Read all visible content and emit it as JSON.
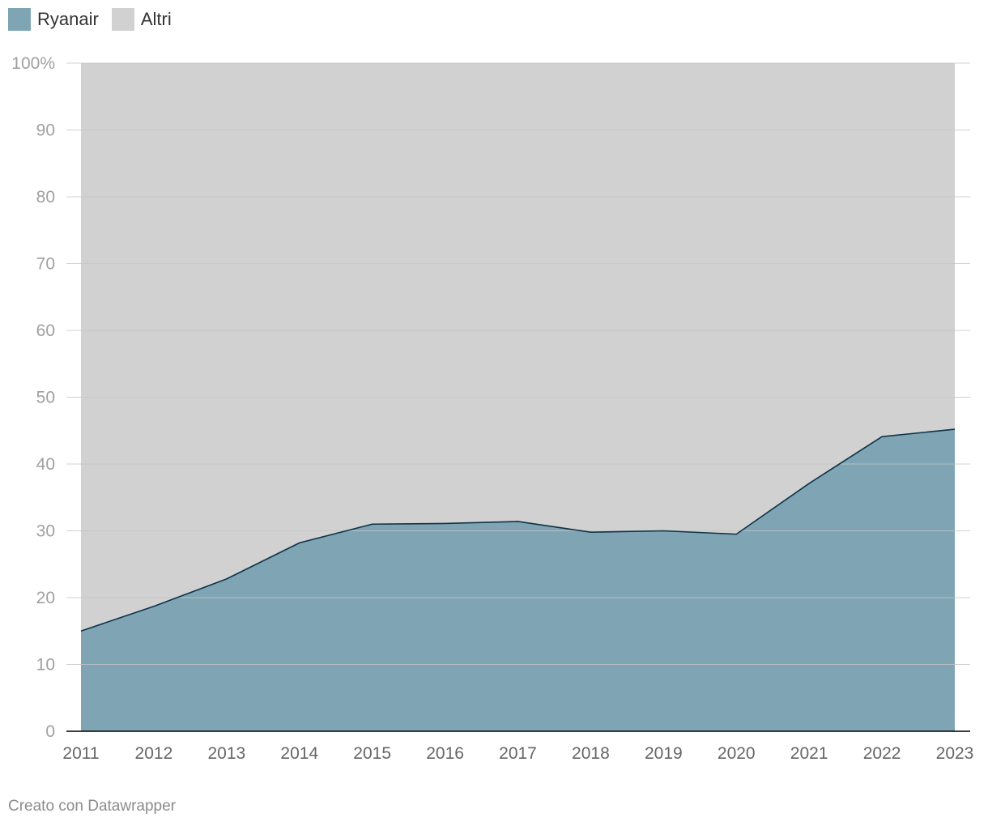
{
  "legend": [
    {
      "name": "Ryanair",
      "color": "#7fa5b4"
    },
    {
      "name": "Altri",
      "color": "#d1d1d1"
    }
  ],
  "footer": "Creato con Datawrapper",
  "chart_data": {
    "type": "area",
    "stacked": true,
    "x": [
      "2011",
      "2012",
      "2013",
      "2014",
      "2015",
      "2016",
      "2017",
      "2018",
      "2019",
      "2020",
      "2021",
      "2022",
      "2023"
    ],
    "series": [
      {
        "name": "Ryanair",
        "color": "#7fa5b4",
        "line_color": "#0d3349",
        "values": [
          15.0,
          18.7,
          22.8,
          28.2,
          31.0,
          31.1,
          31.4,
          29.8,
          30.0,
          29.5,
          37.1,
          44.1,
          45.2
        ]
      },
      {
        "name": "Altri",
        "color": "#d1d1d1",
        "values": [
          85.0,
          81.3,
          77.2,
          71.8,
          69.0,
          68.9,
          68.6,
          70.2,
          70.0,
          70.5,
          62.9,
          55.9,
          54.8
        ]
      }
    ],
    "ylim": [
      0,
      100
    ],
    "yticks": [
      0,
      10,
      20,
      30,
      40,
      50,
      60,
      70,
      80,
      90,
      100
    ],
    "ytick_labels": [
      "0",
      "10",
      "20",
      "30",
      "40",
      "50",
      "60",
      "70",
      "80",
      "90",
      "100%"
    ],
    "grid": true,
    "legend_position": "top-left",
    "title": "",
    "xlabel": "",
    "ylabel": ""
  }
}
